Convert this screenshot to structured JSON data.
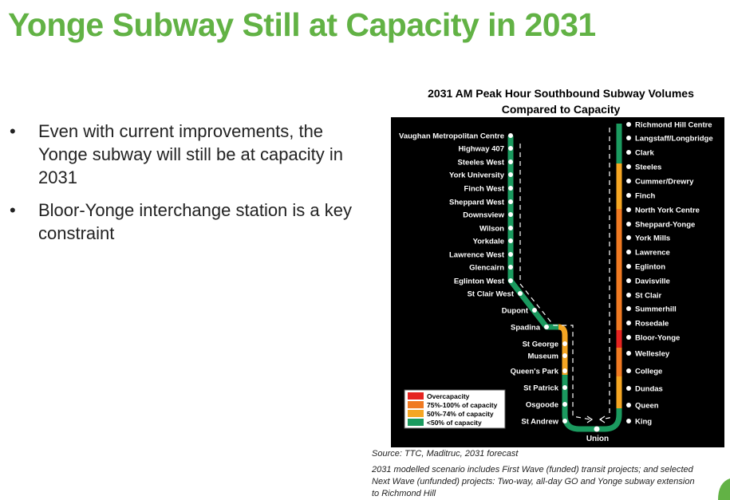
{
  "header": {
    "title": "Yonge Subway Still at Capacity in 2031"
  },
  "bullets": [
    "Even with current improvements, the Yonge subway will still be at capacity in 2031",
    "Bloor-Yonge interchange station is a key constraint"
  ],
  "diagram": {
    "title": [
      "2031 AM Peak Hour Southbound Subway Volumes",
      "Compared to Capacity"
    ],
    "left_stations": [
      "Vaughan Metropolitan Centre",
      "Highway 407",
      "Steeles West",
      "York University",
      "Finch West",
      "Sheppard West",
      "Downsview",
      "Wilson",
      "Yorkdale",
      "Lawrence West",
      "Glencairn",
      "Eglinton West",
      "St Clair West",
      "Dupont",
      "Spadina",
      "St George",
      "Museum",
      "Queen's Park",
      "St Patrick",
      "Osgoode",
      "St Andrew"
    ],
    "right_stations": [
      "Richmond Hill Centre",
      "Langstaff/Longbridge",
      "Clark",
      "Steeles",
      "Cummer/Drewry",
      "Finch",
      "North York Centre",
      "Sheppard-Yonge",
      "York Mills",
      "Lawrence",
      "Eglinton",
      "Davisville",
      "St Clair",
      "Summerhill",
      "Rosedale",
      "Bloor-Yonge",
      "Wellesley",
      "College",
      "Dundas",
      "Queen",
      "King"
    ],
    "union": "Union",
    "legend": [
      "Overcapacity",
      "75%-100% of capacity",
      "50%-74% of capacity",
      "<50% of capacity"
    ]
  },
  "source": "Source: TTC, Maditruc, 2031 forecast",
  "notes": [
    "2031 modelled scenario includes First Wave (funded) transit projects; and selected",
    "Next Wave (unfunded) projects: Two-way, all-day GO and Yonge subway extension",
    "to Richmond Hill"
  ]
}
